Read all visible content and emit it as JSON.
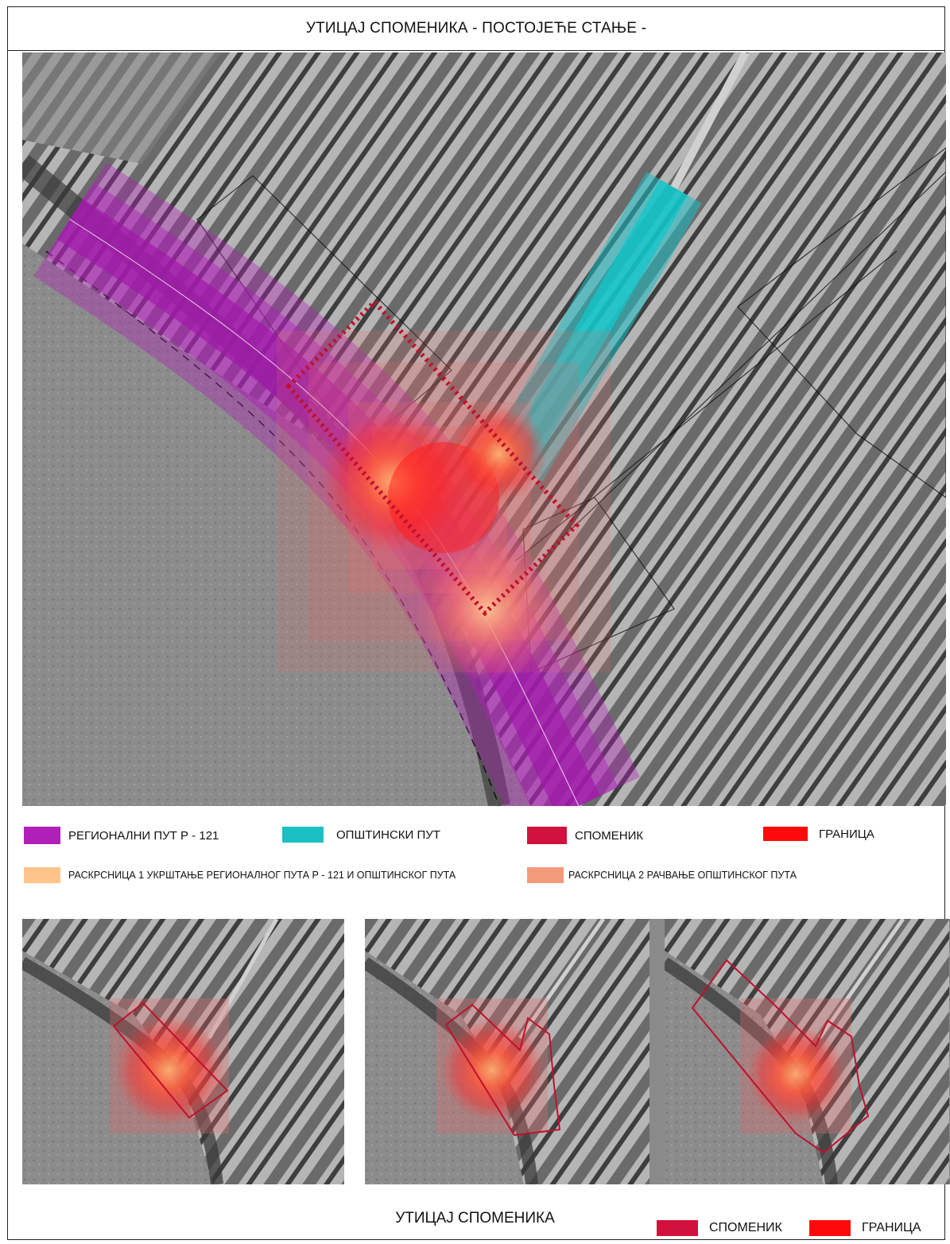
{
  "title": "УТИЦАЈ СПОМЕНИКА - ПОСТОЈЕЋЕ СТАЊЕ -",
  "legend": {
    "items": [
      {
        "label": "РЕГИОНАЛНИ ПУТ Р - 121",
        "color": "#b01fb8"
      },
      {
        "label": "ОПШТИНСКИ ПУТ",
        "color": "#1bbfc4"
      },
      {
        "label": "СПОМЕНИК",
        "color": "#d1123c"
      },
      {
        "label": "ГРАНИЦА",
        "color": "#ff0a0a"
      },
      {
        "label": "РАСКРСНИЦА 1 УКРШТАЊЕ РЕГИОНАЛНОГ ПУТА Р - 121 И ОПШТИНСКОГ ПУТА",
        "color": "#ffc48a"
      },
      {
        "label": "РАСКРСНИЦА 2 РАЧВАЊЕ ОПШТИНСКОГ ПУТА",
        "color": "#f29a7a"
      }
    ]
  },
  "bottom": {
    "title": "УТИЦАЈ СПОМЕНИКА",
    "legend": [
      {
        "label": "СПОМЕНИК",
        "color": "#d1123c"
      },
      {
        "label": "ГРАНИЦА",
        "color": "#ff0a0a"
      }
    ]
  }
}
